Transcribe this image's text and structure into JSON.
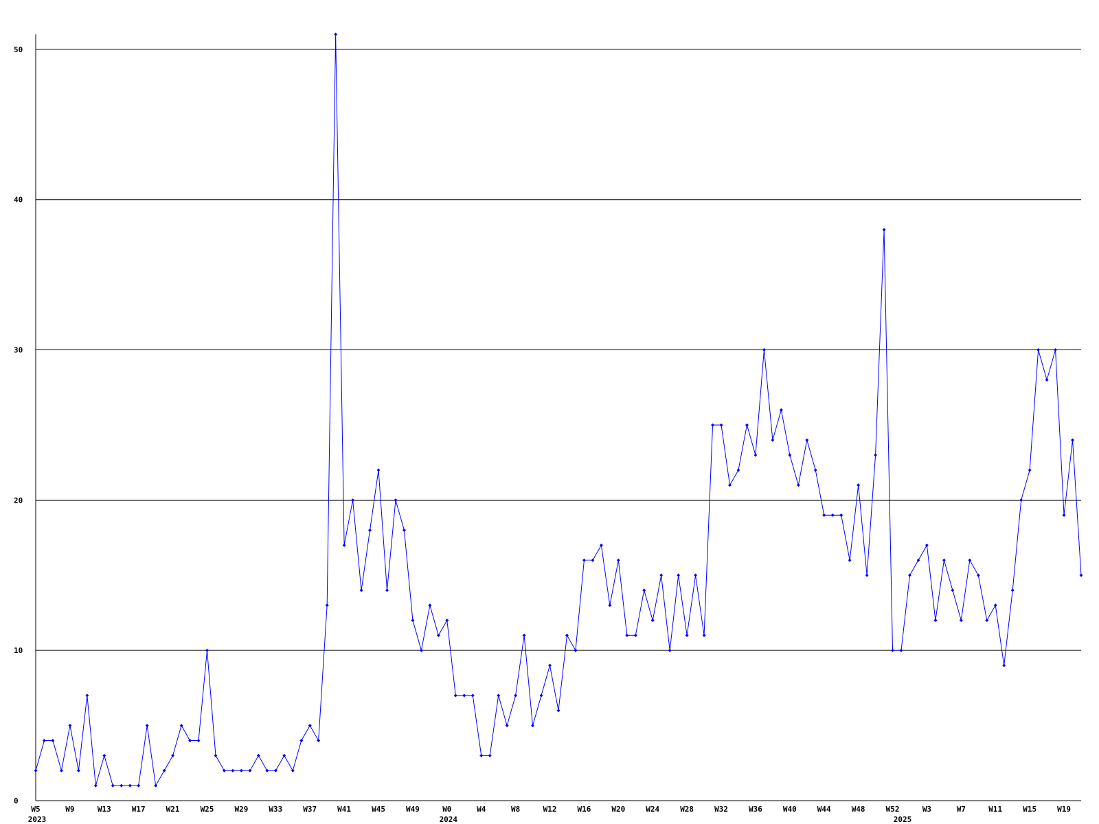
{
  "chart_data": {
    "type": "line",
    "color": "#0000ff",
    "grid": true,
    "categories": [
      "W5",
      null,
      null,
      null,
      "W9",
      null,
      null,
      null,
      "W13",
      null,
      null,
      null,
      "W17",
      null,
      null,
      null,
      "W21",
      null,
      null,
      null,
      "W25",
      null,
      null,
      null,
      "W29",
      null,
      null,
      null,
      "W33",
      null,
      null,
      null,
      "W37",
      null,
      null,
      null,
      "W41",
      null,
      null,
      null,
      "W45",
      null,
      null,
      null,
      "W49",
      null,
      null,
      null,
      "W0",
      null,
      null,
      null,
      "W4",
      null,
      null,
      null,
      "W8",
      null,
      null,
      null,
      "W12",
      null,
      null,
      null,
      "W16",
      null,
      null,
      null,
      "W20",
      null,
      null,
      null,
      "W24",
      null,
      null,
      null,
      "W28",
      null,
      null,
      null,
      "W32",
      null,
      null,
      null,
      "W36",
      null,
      null,
      null,
      "W40",
      null,
      null,
      null,
      "W44",
      null,
      null,
      null,
      "W48",
      null,
      null,
      null,
      "W52",
      null,
      null,
      null,
      "W3",
      null,
      null,
      null,
      "W7",
      null,
      null,
      null,
      "W11",
      null,
      null,
      null,
      "W15",
      null,
      null,
      null,
      "W19",
      null,
      null
    ],
    "x_year_labels": [
      "2023",
      null,
      null,
      null,
      null,
      null,
      null,
      null,
      null,
      null,
      null,
      null,
      null,
      null,
      null,
      null,
      null,
      null,
      null,
      null,
      null,
      null,
      null,
      null,
      null,
      null,
      null,
      null,
      null,
      null,
      null,
      null,
      null,
      null,
      null,
      null,
      null,
      null,
      null,
      null,
      null,
      null,
      null,
      null,
      null,
      null,
      null,
      null,
      "2024",
      null,
      null,
      null,
      null,
      null,
      null,
      null,
      null,
      null,
      null,
      null,
      null,
      null,
      null,
      null,
      null,
      null,
      null,
      null,
      null,
      null,
      null,
      null,
      null,
      null,
      null,
      null,
      null,
      null,
      null,
      null,
      null,
      null,
      null,
      null,
      null,
      null,
      null,
      null,
      null,
      null,
      null,
      null,
      null,
      null,
      null,
      null,
      null,
      null,
      null,
      null,
      null,
      "2025",
      null,
      null,
      null,
      null,
      null,
      null,
      null,
      null,
      null,
      null,
      null,
      null,
      null,
      null,
      null,
      null,
      null,
      null,
      null,
      null,
      null
    ],
    "values": [
      2,
      4,
      4,
      2,
      5,
      2,
      7,
      1,
      3,
      1,
      1,
      1,
      1,
      5,
      1,
      2,
      3,
      5,
      4,
      4,
      10,
      3,
      2,
      2,
      2,
      2,
      3,
      2,
      2,
      3,
      2,
      4,
      5,
      4,
      13,
      51,
      17,
      20,
      14,
      18,
      22,
      14,
      20,
      18,
      12,
      10,
      13,
      11,
      12,
      7,
      7,
      7,
      3,
      3,
      7,
      5,
      7,
      11,
      5,
      7,
      9,
      6,
      11,
      10,
      16,
      16,
      17,
      13,
      16,
      11,
      11,
      14,
      12,
      15,
      10,
      15,
      11,
      15,
      11,
      25,
      25,
      21,
      22,
      25,
      23,
      30,
      24,
      26,
      23,
      21,
      24,
      22,
      19,
      19,
      19,
      16,
      21,
      15,
      23,
      38,
      10,
      10,
      15,
      16,
      17,
      12,
      16,
      14,
      12,
      16,
      15,
      12,
      13,
      9,
      14,
      20,
      22,
      30,
      28,
      30,
      19,
      24,
      15
    ],
    "ylim": [
      0,
      51
    ],
    "yticks": [
      0,
      10,
      20,
      30,
      40,
      50
    ]
  }
}
